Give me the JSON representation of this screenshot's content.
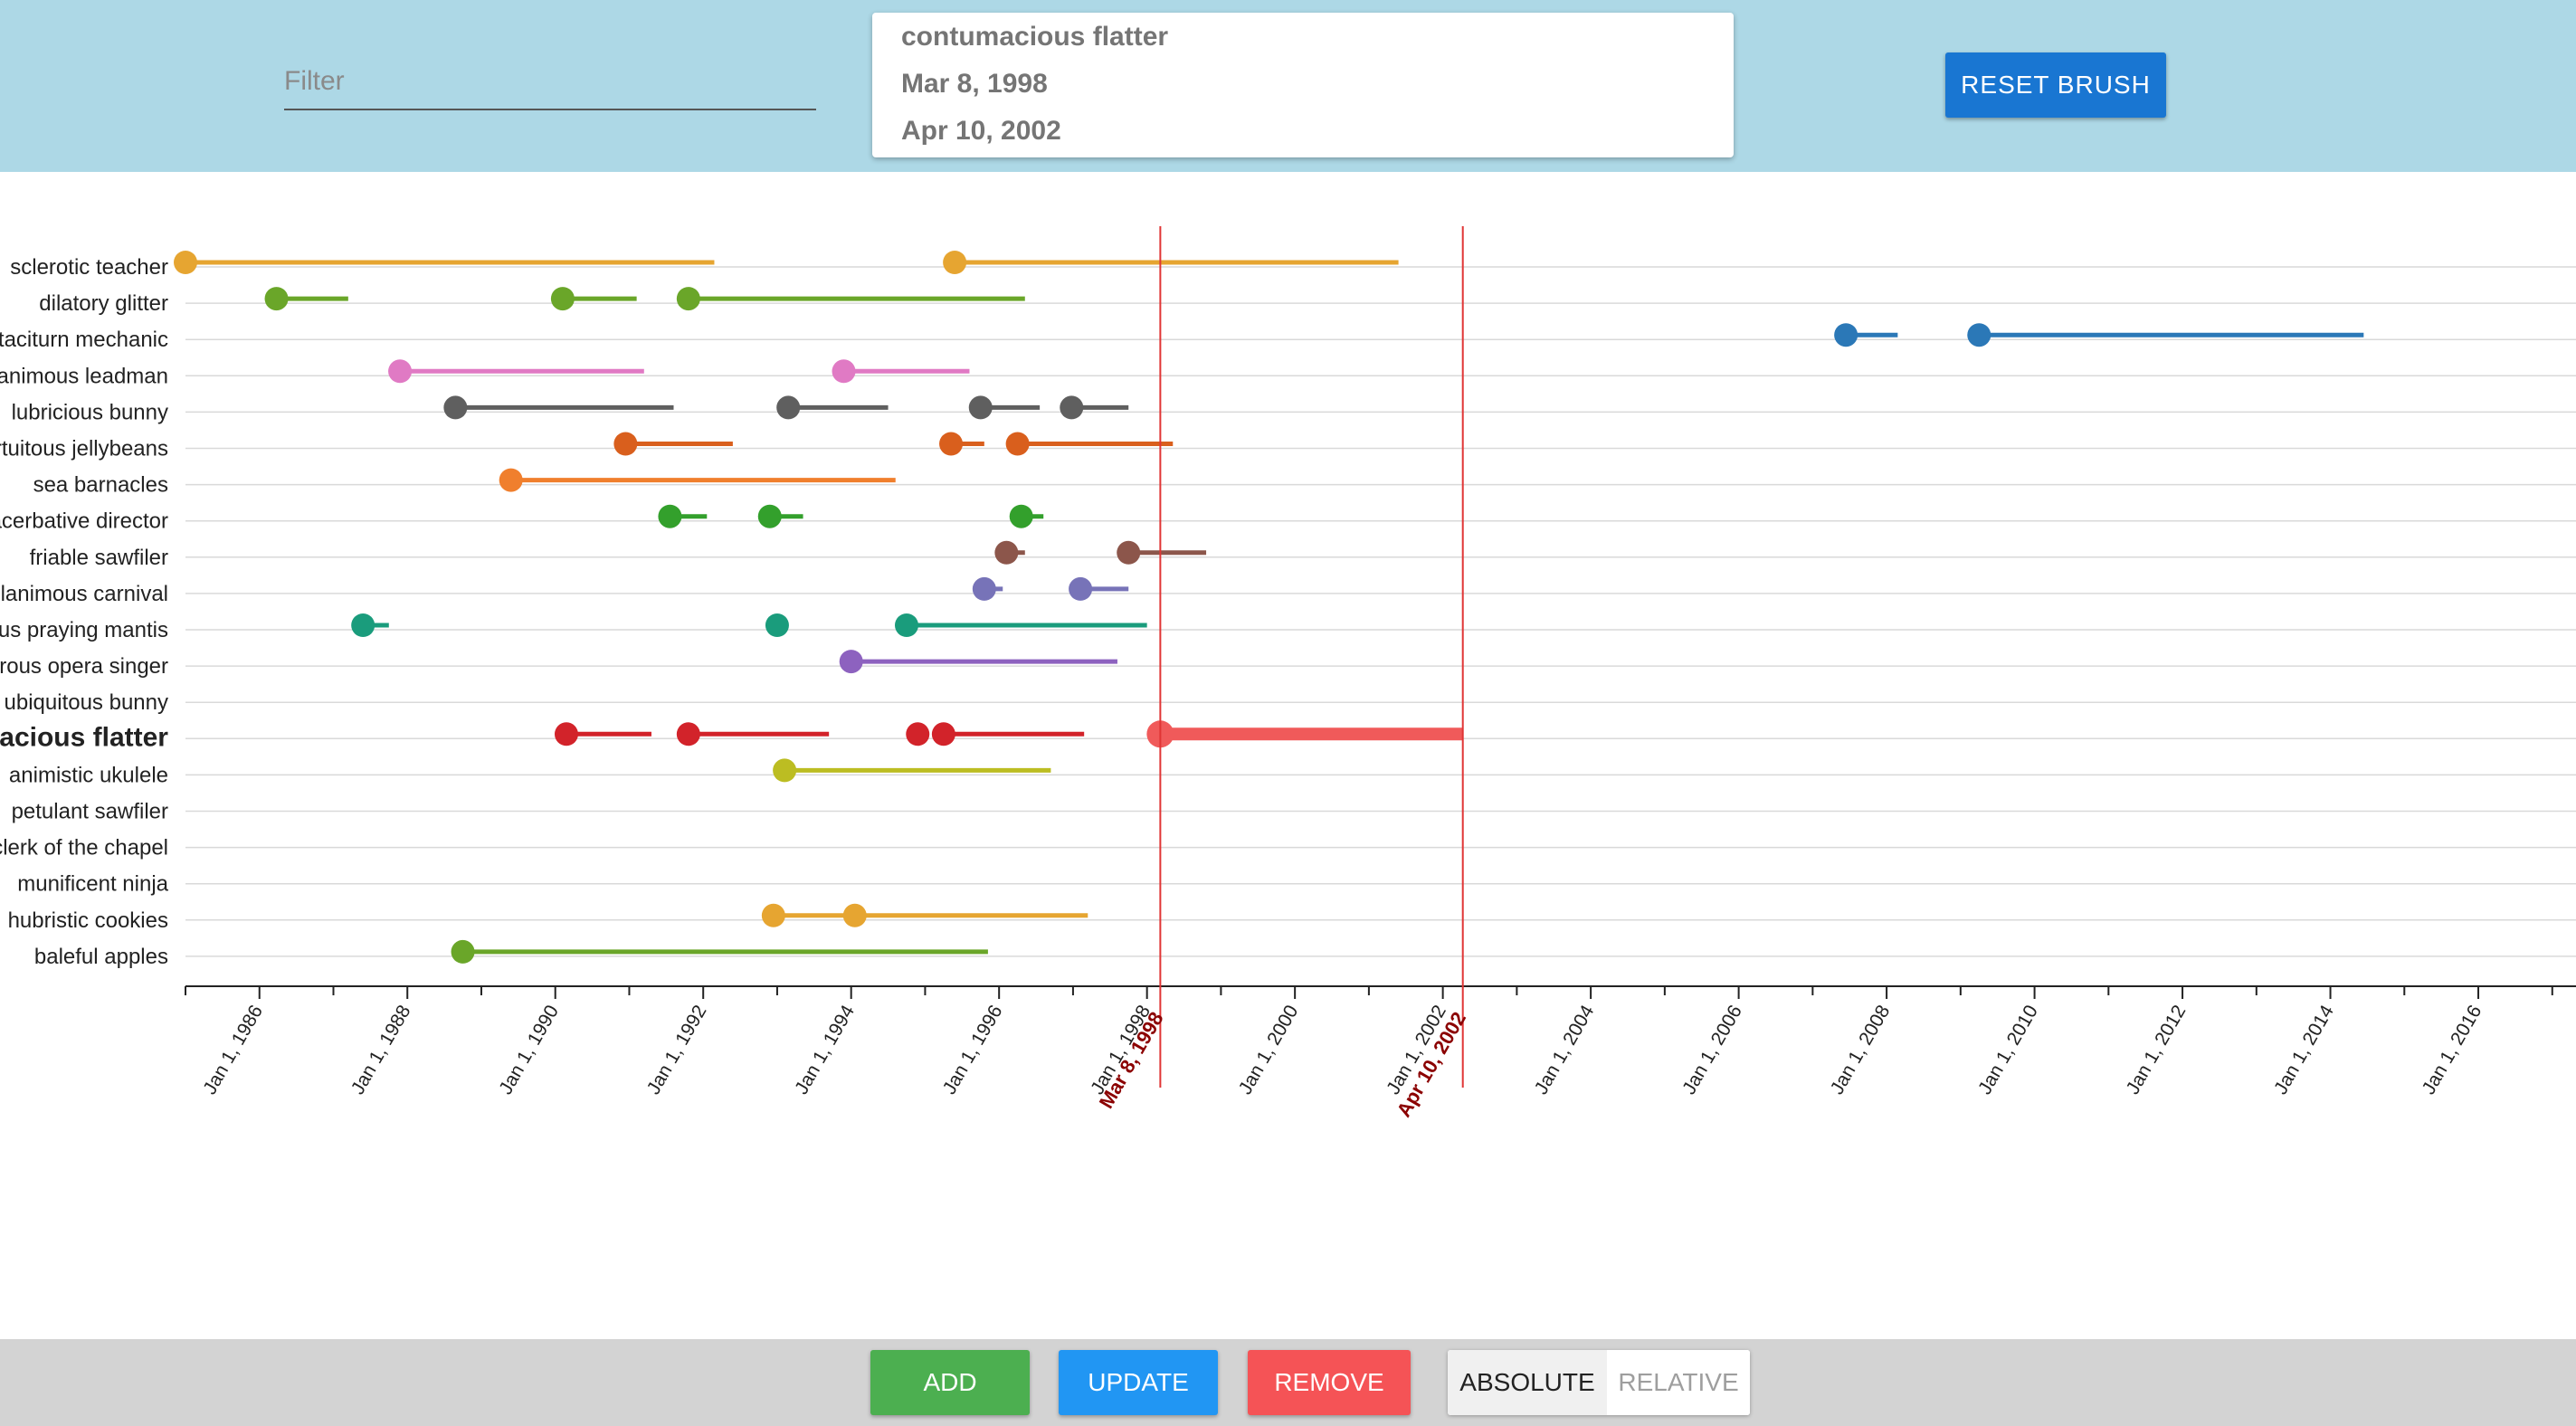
{
  "header": {
    "filter_placeholder": "Filter",
    "info": {
      "name": "contumacious flatter",
      "start": "Mar 8, 1998",
      "end": "Apr 10, 2002"
    },
    "reset_label": "RESET BRUSH"
  },
  "footer": {
    "add_label": "ADD",
    "update_label": "UPDATE",
    "remove_label": "REMOVE",
    "toggle_left": "ABSOLUTE",
    "toggle_right": "RELATIVE",
    "active_mode": "ABSOLUTE",
    "colors": {
      "add": "#4caf50",
      "update": "#2196f3",
      "remove": "#f55356"
    }
  },
  "chart_data": {
    "type": "timeline",
    "x_domain": [
      "1985-01-01",
      "2017-05-01"
    ],
    "x_ticks": [
      "Jan 1, 1986",
      "Jan 1, 1988",
      "Jan 1, 1990",
      "Jan 1, 1992",
      "Jan 1, 1994",
      "Jan 1, 1996",
      "Jan 1, 1998",
      "Jan 1, 2000",
      "Jan 1, 2002",
      "Jan 1, 2004",
      "Jan 1, 2006",
      "Jan 1, 2008",
      "Jan 1, 2010",
      "Jan 1, 2012",
      "Jan 1, 2014",
      "Jan 1, 2016"
    ],
    "brush": {
      "start": "Mar 8, 1998",
      "end": "Apr 10, 2002",
      "start_value": 1998.18,
      "end_value": 2002.27,
      "color": "#e03535",
      "label_color": "#8b0000"
    },
    "highlight_row": "contumacious flatter",
    "highlight_event": [
      1998.18,
      2002.27
    ],
    "rows": [
      {
        "label": "sclerotic teacher",
        "color": "#e6a531",
        "events": [
          [
            1985.0,
            1992.15
          ],
          [
            1995.4,
            2001.4
          ]
        ]
      },
      {
        "label": "dilatory glitter",
        "color": "#6aa629",
        "events": [
          [
            1986.23,
            1987.2
          ],
          [
            1990.1,
            1991.1
          ],
          [
            1991.8,
            1996.35
          ]
        ]
      },
      {
        "label": "taciturn mechanic",
        "color": "#2b78b7",
        "events": [
          [
            2007.45,
            2008.15
          ],
          [
            2009.25,
            2014.45
          ]
        ]
      },
      {
        "label": "pusillanimous leadman",
        "color": "#e07ac4",
        "events": [
          [
            1987.9,
            1991.2
          ],
          [
            1993.9,
            1995.6
          ]
        ]
      },
      {
        "label": "lubricious bunny",
        "color": "#5f5f5f",
        "events": [
          [
            1988.65,
            1991.6
          ],
          [
            1993.15,
            1994.5
          ],
          [
            1995.75,
            1996.55
          ],
          [
            1996.98,
            1997.75
          ]
        ]
      },
      {
        "label": "fortuitous jellybeans",
        "color": "#d95f1d",
        "events": [
          [
            1990.95,
            1992.4
          ],
          [
            1995.35,
            1995.8
          ],
          [
            1996.25,
            1998.35
          ]
        ]
      },
      {
        "label": "sea barnacles",
        "color": "#f07f2d",
        "events": [
          [
            1989.4,
            1994.6
          ]
        ]
      },
      {
        "label": "exacerbative director",
        "color": "#33a02c",
        "events": [
          [
            1991.55,
            1992.05
          ],
          [
            1992.9,
            1993.35
          ],
          [
            1996.3,
            1996.6
          ]
        ]
      },
      {
        "label": "friable sawfiler",
        "color": "#8c564b",
        "events": [
          [
            1996.1,
            1996.35
          ],
          [
            1997.75,
            1998.8
          ]
        ]
      },
      {
        "label": "pusillanimous carnival",
        "color": "#7773b8",
        "events": [
          [
            1995.8,
            1996.05
          ],
          [
            1997.1,
            1997.75
          ]
        ]
      },
      {
        "label": "pestiferous praying mantis",
        "color": "#1a9c7c",
        "events": [
          [
            1987.4,
            1987.75
          ],
          [
            1993.0,
            1993.1
          ],
          [
            1994.75,
            1998.0
          ]
        ]
      },
      {
        "label": "obstreperous opera singer",
        "color": "#8d62bf",
        "events": [
          [
            1994.0,
            1997.6
          ]
        ]
      },
      {
        "label": "ubiquitous bunny",
        "color": "#ad8024",
        "events": []
      },
      {
        "label": "contumacious flatter",
        "color": "#d2232a",
        "events": [
          [
            1990.15,
            1991.3
          ],
          [
            1991.8,
            1993.7
          ],
          [
            1994.9,
            1995.05
          ],
          [
            1995.25,
            1997.15
          ]
        ]
      },
      {
        "label": "animistic ukulele",
        "color": "#bcbd22",
        "events": [
          [
            1993.1,
            1996.7
          ]
        ]
      },
      {
        "label": "petulant sawfiler",
        "color": "#e6338a",
        "events": []
      },
      {
        "label": "clerk of the chapel",
        "color": "#808080",
        "events": []
      },
      {
        "label": "munificent ninja",
        "color": "#21bcd2",
        "events": []
      },
      {
        "label": "hubristic cookies",
        "color": "#e6a531",
        "events": [
          [
            1992.95,
            1994.05
          ],
          [
            1994.05,
            1997.2
          ]
        ]
      },
      {
        "label": "baleful apples",
        "color": "#6aa629",
        "events": [
          [
            1988.75,
            1995.85
          ]
        ]
      }
    ]
  }
}
